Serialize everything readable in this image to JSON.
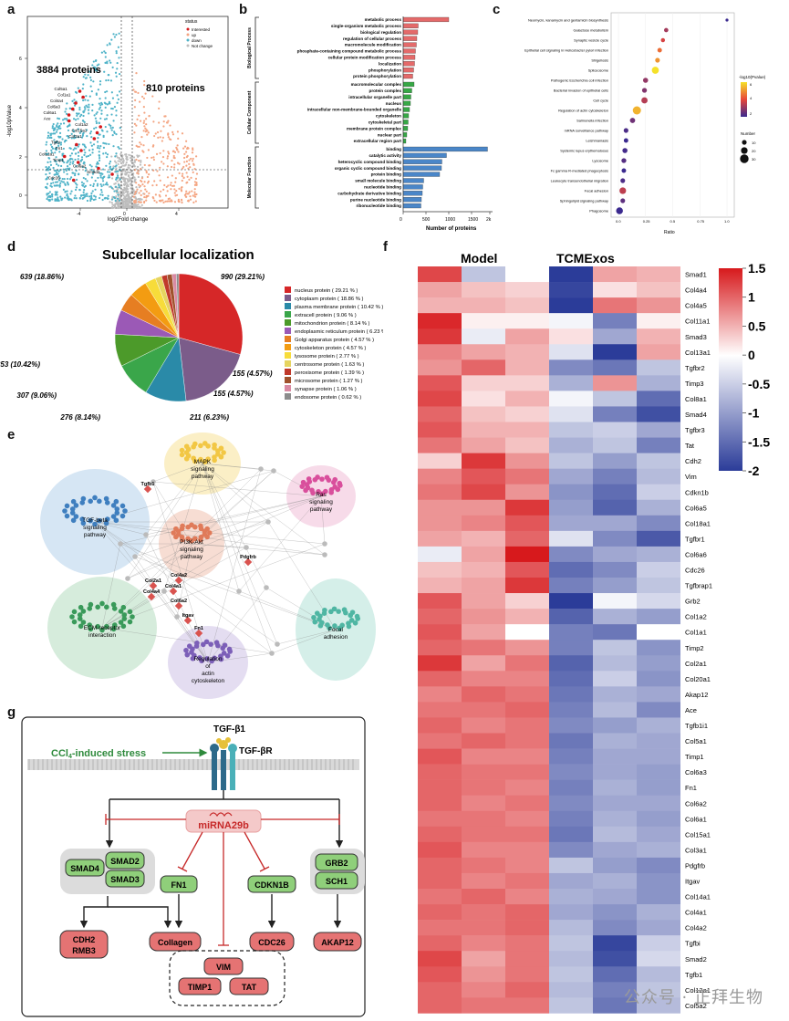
{
  "panels": {
    "a": "a",
    "b": "b",
    "c": "c",
    "d": "d",
    "e": "e",
    "f": "f",
    "g": "g"
  },
  "panel_a": {
    "y_label": "-log10pValue",
    "x_label": "log2Fold change",
    "left_count": "3884 proteins",
    "right_count": "810 proteins",
    "legend_title": "status",
    "legend": [
      "Interested",
      "up",
      "down",
      "Not change"
    ],
    "x_ticks": [
      "-4",
      "0",
      "4"
    ],
    "y_ticks": [
      "0",
      "2",
      "4",
      "6"
    ],
    "genes": [
      "Col5a1",
      "Col1a1",
      "Col4a4",
      "Col6a3",
      "Col6a1",
      "Ace",
      "Col1a2",
      "Col15a1",
      "Col3a1",
      "Tgfbi",
      "Fn1",
      "Col12a1",
      "Timp1",
      "Col6a2",
      "Smad2",
      "Cdc26"
    ],
    "colors": {
      "interested": "#d7191c",
      "up": "#f4a582",
      "down": "#4fb3c8",
      "nc": "#bdbdbd"
    }
  },
  "panel_b": {
    "x_label": "Number of proteins",
    "x_ticks": [
      "0",
      "500",
      "1000",
      "1500",
      "2k"
    ],
    "groups": [
      "Biological Process",
      "Cellular Component",
      "Molecular Function"
    ],
    "colors": {
      "bp": "#e46a6a",
      "cc": "#36a845",
      "mf": "#4a86c8"
    },
    "bp": {
      "terms": [
        "metabolic process",
        "single-organism metabolic process",
        "biological regulation",
        "regulation of cellular process",
        "macromolecule modification",
        "phosphate-containing compound metabolic process",
        "cellular protein modification process",
        "localization",
        "phosphorylation",
        "protein phosphorylation"
      ],
      "values": [
        1000,
        330,
        320,
        300,
        290,
        270,
        260,
        250,
        230,
        210
      ]
    },
    "cc": {
      "terms": [
        "macromolecular complex",
        "protein complex",
        "intracellular organelle part",
        "nucleus",
        "intracellular non-membrane-bounded organelle",
        "cytoskeleton",
        "cytoskeletal part",
        "membrane protein complex",
        "nuclear part",
        "extracellular region part"
      ],
      "values": [
        240,
        190,
        170,
        160,
        140,
        120,
        110,
        100,
        80,
        60
      ]
    },
    "mf": {
      "terms": [
        "binding",
        "catalytic activity",
        "heterocyclic compound binding",
        "organic cyclic compound binding",
        "protein binding",
        "small molecule binding",
        "nucleotide binding",
        "carbohydrate derivative binding",
        "purine nucleotide binding",
        "ribonucleotide binding"
      ],
      "values": [
        1850,
        950,
        850,
        840,
        800,
        450,
        430,
        420,
        400,
        390
      ]
    }
  },
  "panel_c": {
    "x_label": "Ratio",
    "x_ticks": [
      "0.0",
      "0.25",
      "0.5",
      "0.75",
      "1.0"
    ],
    "legend_color_title": "-log10(Pvalue)",
    "legend_color_ticks": [
      "6",
      "4",
      "2"
    ],
    "legend_size_title": "Number",
    "legend_size_ticks": [
      "10",
      "20",
      "30"
    ],
    "terms": [
      "Neomycin, kanamycin and gentamicin biosynthesis",
      "Galactose metabolism",
      "Synaptic vesicle cycle",
      "Epithelial cell signaling in Helicobacter pylori infection",
      "Shigellosis",
      "Spliceosome",
      "Pathogenic Escherichia coli infection",
      "Bacterial invasion of epithelial cells",
      "Cell cycle",
      "Regulation of actin cytoskeleton",
      "Salmonella infection",
      "mRNA surveillance pathway",
      "Leishmaniasis",
      "Systemic lupus erythematosus",
      "Lysosome",
      "Fc gamma R-mediated phagocytosis",
      "Leukocyte transendothelial migration",
      "Focal adhesion",
      "Sphingolipid signaling pathway",
      "Phagosome"
    ],
    "ratios": [
      1.0,
      0.44,
      0.41,
      0.38,
      0.36,
      0.34,
      0.25,
      0.24,
      0.24,
      0.17,
      0.13,
      0.07,
      0.07,
      0.06,
      0.05,
      0.05,
      0.04,
      0.04,
      0.04,
      0.01
    ],
    "pvals": [
      2.0,
      3.2,
      3.8,
      4.5,
      5.0,
      6.0,
      3.0,
      2.8,
      3.4,
      5.4,
      2.6,
      2.2,
      2.0,
      2.1,
      2.3,
      2.0,
      2.2,
      3.5,
      2.4,
      2.0
    ],
    "counts": [
      1,
      8,
      7,
      9,
      10,
      22,
      12,
      11,
      18,
      28,
      13,
      10,
      9,
      12,
      11,
      9,
      10,
      20,
      10,
      21
    ]
  },
  "panel_d": {
    "title": "Subcellular localization",
    "slices": [
      {
        "name": "nucleus protein",
        "pct_text": "29.21 %",
        "value": 29.21,
        "color": "#d62728",
        "label": "990 (29.21%)"
      },
      {
        "name": "cytoplasm protein",
        "pct_text": "18.86 %",
        "value": 18.86,
        "color": "#7b5c8a",
        "label": "639 (18.86%)"
      },
      {
        "name": "plasma membrane protein",
        "pct_text": "10.42 %",
        "value": 10.42,
        "color": "#2a8aa8",
        "label": "353 (10.42%)"
      },
      {
        "name": "extracell protein",
        "pct_text": "9.06 %",
        "value": 9.06,
        "color": "#3aa64a",
        "label": "307 (9.06%)"
      },
      {
        "name": "mitochondrion protein",
        "pct_text": "8.14 %",
        "value": 8.14,
        "color": "#4c9a2a",
        "label": "276 (8.14%)"
      },
      {
        "name": "endoplasmic reticulum protein",
        "pct_text": "6.23 %",
        "value": 6.23,
        "color": "#9b59b6",
        "label": "211 (6.23%)"
      },
      {
        "name": "Golgi apparatus protein",
        "pct_text": "4.57 %",
        "value": 4.57,
        "color": "#e67e22",
        "label": "155 (4.57%)"
      },
      {
        "name": "cytoskeleton protein",
        "pct_text": "4.57 %",
        "value": 4.57,
        "color": "#f39c12",
        "label": "155 (4.57%)"
      },
      {
        "name": "lysosome protein",
        "pct_text": "2.77 %",
        "value": 2.77,
        "color": "#f7dc3a",
        "label": ""
      },
      {
        "name": "centrosome protein",
        "pct_text": "1.63 %",
        "value": 1.63,
        "color": "#e6d460",
        "label": ""
      },
      {
        "name": "peroxisome protein",
        "pct_text": "1.39 %",
        "value": 1.39,
        "color": "#c0392b",
        "label": ""
      },
      {
        "name": "microsome protein",
        "pct_text": "1.27 %",
        "value": 1.27,
        "color": "#a0522d",
        "label": ""
      },
      {
        "name": "synapse protein",
        "pct_text": "1.06 %",
        "value": 1.06,
        "color": "#d98aa3",
        "label": ""
      },
      {
        "name": "endosome protein",
        "pct_text": "0.62 %",
        "value": 0.62,
        "color": "#8c8c8c",
        "label": ""
      }
    ]
  },
  "panel_e": {
    "pathways": [
      {
        "name": "MAPK signaling pathway",
        "lines": [
          "MAPK",
          "signaling",
          "pathway"
        ],
        "color": "#f2c744",
        "bg": "#fbefc6"
      },
      {
        "name": "Ras signaling pathway",
        "lines": [
          "Ras",
          "signaling",
          "pathway"
        ],
        "color": "#d94f9c",
        "bg": "#f7dbe9"
      },
      {
        "name": "TGF-beta signaling pathway",
        "lines": [
          "TGF-beta",
          "signaling",
          "pathway"
        ],
        "color": "#3f7fbf",
        "bg": "#d6e6f4"
      },
      {
        "name": "PI3K-Akt signaling pathway",
        "lines": [
          "PI3K-Akt",
          "signaling",
          "pathway"
        ],
        "color": "#e07b5a",
        "bg": "#f7ddd3"
      },
      {
        "name": "ECM-receptor interaction",
        "lines": [
          "ECM-receptor",
          "interaction"
        ],
        "color": "#3a9a5a",
        "bg": "#d6ecdc"
      },
      {
        "name": "Regulation of actin cytoskeleton",
        "lines": [
          "Regulation",
          "of",
          "actin",
          "cytoskeleton"
        ],
        "color": "#7c5fb8",
        "bg": "#e4ddf1"
      },
      {
        "name": "Focal adhesion",
        "lines": [
          "Focal",
          "adhesion"
        ],
        "color": "#4fb6a3",
        "bg": "#d5efe9"
      }
    ],
    "genes": [
      "Tgfb1",
      "Pdgfrb",
      "Col2a1",
      "Col4a2",
      "Col4a1",
      "Col4a4",
      "Col6a2",
      "Itgav",
      "Fn1"
    ]
  },
  "panel_f": {
    "group_labels": [
      "Model",
      "TCMExos"
    ],
    "colorbar_ticks": [
      "1.5",
      "1",
      "0.5",
      "0",
      "-0.5",
      "-1",
      "-1.5",
      "-2"
    ],
    "genes": [
      "Smad1",
      "Col4a4",
      "Col4a5",
      "Col11a1",
      "Smad3",
      "Col13a1",
      "Tgfbr2",
      "Timp3",
      "Col8a1",
      "Smad4",
      "Tgfbr3",
      "Tat",
      "Cdh2",
      "Vim",
      "Cdkn1b",
      "Col6a5",
      "Col18a1",
      "Tgfbr1",
      "Col6a6",
      "Cdc26",
      "Tgfbrap1",
      "Grb2",
      "Col1a2",
      "Col1a1",
      "Timp2",
      "Col2a1",
      "Col20a1",
      "Akap12",
      "Ace",
      "Tgfb1i1",
      "Col5a1",
      "Timp1",
      "Col6a3",
      "Fn1",
      "Col6a2",
      "Col6a1",
      "Col15a1",
      "Col3a1",
      "Pdgfrb",
      "Itgav",
      "Col14a1",
      "Col4a1",
      "Col4a2",
      "Tgfbi",
      "Smad2",
      "Tgfb1",
      "Col12a1",
      "Col5a2"
    ],
    "values": [
      [
        1.2,
        -0.6,
        0.0,
        -2.0,
        0.6,
        0.5
      ],
      [
        0.6,
        0.4,
        0.3,
        -1.9,
        0.2,
        0.4
      ],
      [
        0.5,
        0.5,
        0.4,
        -2.0,
        0.9,
        0.7
      ],
      [
        1.4,
        0.1,
        0.1,
        -0.1,
        -1.3,
        0.1
      ],
      [
        1.3,
        -0.2,
        0.6,
        0.2,
        -0.9,
        0.5
      ],
      [
        0.8,
        0.6,
        0.5,
        -0.3,
        -2.0,
        0.6
      ],
      [
        0.7,
        1.0,
        0.5,
        -1.2,
        -1.4,
        -0.6
      ],
      [
        1.1,
        0.3,
        0.3,
        -0.8,
        0.7,
        -0.8
      ],
      [
        1.2,
        0.2,
        0.5,
        -0.1,
        -0.6,
        -1.5
      ],
      [
        1.0,
        0.4,
        0.3,
        -0.3,
        -1.3,
        -1.8
      ],
      [
        1.1,
        0.5,
        0.5,
        -0.6,
        -0.5,
        -0.9
      ],
      [
        0.9,
        0.6,
        0.4,
        -0.8,
        -0.6,
        -1.3
      ],
      [
        0.3,
        1.3,
        0.7,
        -0.6,
        -1.0,
        -0.6
      ],
      [
        0.8,
        1.1,
        0.9,
        -0.9,
        -1.3,
        -0.7
      ],
      [
        0.9,
        1.2,
        0.7,
        -1.1,
        -1.5,
        -0.5
      ],
      [
        0.7,
        0.7,
        1.3,
        -1.0,
        -1.6,
        -0.8
      ],
      [
        0.7,
        0.8,
        1.1,
        -0.9,
        -0.9,
        -1.2
      ],
      [
        0.6,
        0.5,
        1.0,
        -0.3,
        -1.2,
        -1.7
      ],
      [
        -0.2,
        0.6,
        1.5,
        -1.2,
        -0.9,
        -0.8
      ],
      [
        0.4,
        0.5,
        1.1,
        -1.5,
        -1.2,
        -0.5
      ],
      [
        0.5,
        0.6,
        1.3,
        -1.3,
        -1.0,
        -0.6
      ],
      [
        1.1,
        0.6,
        0.3,
        -2.0,
        -0.1,
        -0.4
      ],
      [
        1.0,
        0.7,
        0.5,
        -1.6,
        -0.8,
        -1.0
      ],
      [
        1.1,
        0.6,
        0.0,
        -1.3,
        -1.4,
        0.0
      ],
      [
        1.0,
        0.9,
        0.7,
        -1.3,
        -0.6,
        -1.1
      ],
      [
        1.3,
        0.6,
        0.9,
        -1.6,
        -0.7,
        -1.0
      ],
      [
        1.0,
        0.8,
        0.8,
        -1.5,
        -0.5,
        -1.1
      ],
      [
        0.8,
        1.0,
        0.9,
        -1.4,
        -0.8,
        -0.9
      ],
      [
        0.9,
        0.9,
        1.0,
        -1.3,
        -0.7,
        -1.2
      ],
      [
        1.0,
        0.8,
        0.9,
        -1.2,
        -1.0,
        -0.8
      ],
      [
        0.9,
        1.0,
        0.9,
        -1.4,
        -0.8,
        -0.9
      ],
      [
        1.1,
        0.8,
        0.8,
        -1.3,
        -0.9,
        -0.9
      ],
      [
        1.0,
        0.9,
        0.9,
        -1.2,
        -0.9,
        -1.0
      ],
      [
        1.0,
        0.9,
        0.8,
        -1.3,
        -0.8,
        -1.0
      ],
      [
        1.0,
        0.8,
        0.9,
        -1.2,
        -0.9,
        -0.9
      ],
      [
        0.9,
        0.9,
        0.8,
        -1.3,
        -0.8,
        -1.0
      ],
      [
        1.0,
        0.9,
        0.9,
        -1.4,
        -0.7,
        -0.9
      ],
      [
        1.1,
        0.8,
        0.8,
        -1.2,
        -0.9,
        -0.8
      ],
      [
        1.0,
        0.9,
        0.8,
        -0.6,
        -1.0,
        -1.2
      ],
      [
        1.0,
        0.8,
        0.9,
        -0.9,
        -0.8,
        -1.1
      ],
      [
        0.9,
        1.0,
        0.8,
        -0.8,
        -0.9,
        -1.1
      ],
      [
        1.0,
        0.9,
        1.0,
        -0.9,
        -1.1,
        -0.8
      ],
      [
        0.9,
        0.9,
        1.0,
        -0.7,
        -1.2,
        -0.9
      ],
      [
        1.0,
        0.8,
        0.9,
        -0.6,
        -1.9,
        -0.5
      ],
      [
        1.2,
        0.6,
        0.9,
        -0.7,
        -1.8,
        -0.4
      ],
      [
        1.1,
        0.7,
        0.9,
        -0.6,
        -1.5,
        -0.7
      ],
      [
        1.0,
        0.8,
        1.0,
        -0.7,
        -1.3,
        -0.6
      ],
      [
        1.0,
        0.9,
        0.9,
        -0.6,
        -1.4,
        -0.7
      ]
    ]
  },
  "panel_g": {
    "ligand": "TGF-β1",
    "receptor": "TGF-βR",
    "stress": "CCl4-induced stress",
    "mirna": "miRNA29b",
    "smad4": "SMAD4",
    "smad2": "SMAD2",
    "smad3": "SMAD3",
    "fn1": "FN1",
    "cdkn1b": "CDKN1B",
    "grb2": "GRB2",
    "sch1": "SCH1",
    "cdh2": "CDH2",
    "rmb3": "RMB3",
    "collagen": "Collagen",
    "cdc26": "CDC26",
    "akap12": "AKAP12",
    "vim": "VIM",
    "timp1": "TIMP1",
    "tat": "TAT"
  },
  "watermark": "公众号 · 正拜生物"
}
